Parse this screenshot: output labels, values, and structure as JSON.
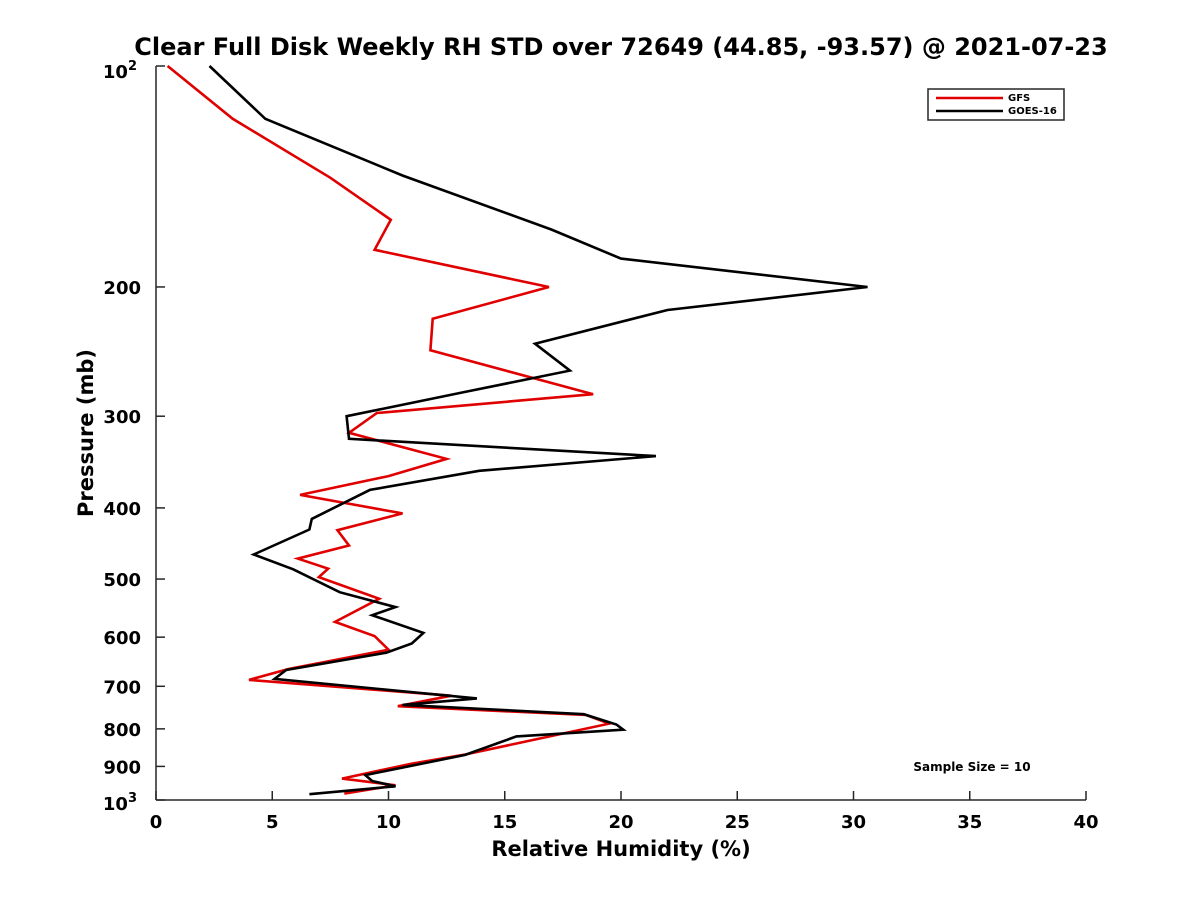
{
  "chart_data": {
    "type": "line",
    "title": "Clear Full Disk Weekly RH STD over 72649 (44.85, -93.57) @ 2021-07-23",
    "xlabel": "Relative Humidity (%)",
    "ylabel": "Pressure (mb)",
    "xlim": [
      0,
      40
    ],
    "ylim": [
      100,
      1000
    ],
    "y_scale": "log",
    "y_reversed": true,
    "grid": false,
    "legend_position": "top-right",
    "x_ticks": [
      0,
      5,
      10,
      15,
      20,
      25,
      30,
      35,
      40
    ],
    "x_tick_labels": [
      "0",
      "5",
      "10",
      "15",
      "20",
      "25",
      "30",
      "35",
      "40"
    ],
    "y_ticks": [
      200,
      300,
      400,
      500,
      600,
      700,
      800,
      900
    ],
    "y_tick_labels": [
      "200",
      "300",
      "400",
      "500",
      "600",
      "700",
      "800",
      "900"
    ],
    "y_end_labels": {
      "top": {
        "value": 100,
        "base": "10",
        "exp": "2"
      },
      "bottom": {
        "value": 1000,
        "base": "10",
        "exp": "3"
      }
    },
    "series": [
      {
        "name": "GFS",
        "color": "#e00000",
        "points": [
          [
            0.5,
            100
          ],
          [
            3.3,
            118
          ],
          [
            7.5,
            142
          ],
          [
            10.1,
            162
          ],
          [
            9.4,
            178
          ],
          [
            16.9,
            200
          ],
          [
            11.9,
            221
          ],
          [
            11.8,
            244
          ],
          [
            18.8,
            280
          ],
          [
            9.5,
            297
          ],
          [
            8.3,
            316
          ],
          [
            12.5,
            343
          ],
          [
            10,
            362
          ],
          [
            6.2,
            384
          ],
          [
            10.6,
            407
          ],
          [
            7.8,
            429
          ],
          [
            8.3,
            450
          ],
          [
            6.1,
            469
          ],
          [
            7.4,
            484
          ],
          [
            7,
            497
          ],
          [
            9.6,
            532
          ],
          [
            7.7,
            572
          ],
          [
            9.4,
            598
          ],
          [
            10,
            624
          ],
          [
            5.7,
            663
          ],
          [
            4,
            686
          ],
          [
            12.7,
            721
          ],
          [
            10.4,
            745
          ],
          [
            18.5,
            766
          ],
          [
            19.5,
            787
          ],
          [
            13.3,
            867
          ],
          [
            11,
            892
          ],
          [
            8,
            935
          ],
          [
            10.3,
            955
          ],
          [
            8.1,
            980
          ]
        ]
      },
      {
        "name": "GOES-16",
        "color": "#000000",
        "points": [
          [
            2.3,
            100
          ],
          [
            4.7,
            118
          ],
          [
            10.6,
            141
          ],
          [
            17,
            167
          ],
          [
            20,
            183
          ],
          [
            30.6,
            200
          ],
          [
            22,
            215
          ],
          [
            16.3,
            239
          ],
          [
            17.8,
            260
          ],
          [
            13.3,
            278
          ],
          [
            8.2,
            300
          ],
          [
            8.3,
            322
          ],
          [
            21.5,
            340
          ],
          [
            13.9,
            356
          ],
          [
            9.2,
            378
          ],
          [
            6.7,
            414
          ],
          [
            6.6,
            428
          ],
          [
            4.2,
            463
          ],
          [
            5.9,
            485
          ],
          [
            7.9,
            521
          ],
          [
            10.3,
            546
          ],
          [
            9.3,
            560
          ],
          [
            11.5,
            592
          ],
          [
            11,
            612
          ],
          [
            9.9,
            630
          ],
          [
            5.6,
            665
          ],
          [
            5.1,
            684
          ],
          [
            13.8,
            727
          ],
          [
            10.6,
            742
          ],
          [
            18.4,
            764
          ],
          [
            19.8,
            789
          ],
          [
            20.1,
            802
          ],
          [
            15.5,
            819
          ],
          [
            13.3,
            868
          ],
          [
            9,
            925
          ],
          [
            9.3,
            942
          ],
          [
            10.3,
            958
          ],
          [
            6.6,
            982
          ]
        ]
      }
    ],
    "annotations": [
      {
        "text": "Sample Size = 10"
      }
    ]
  }
}
